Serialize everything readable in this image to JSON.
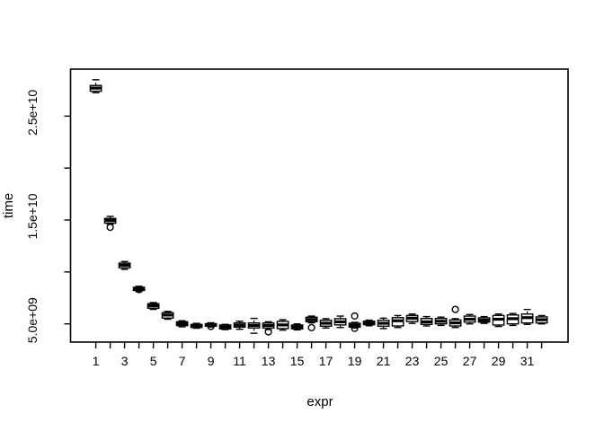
{
  "figure": {
    "background": "#ffffff",
    "foreground": "#000000"
  },
  "chart_data": {
    "type": "boxplot",
    "title": "",
    "xlabel": "expr",
    "ylabel": "time",
    "legend": "none",
    "grid": false,
    "x_ticks": [
      1,
      2,
      3,
      4,
      5,
      6,
      7,
      8,
      9,
      10,
      11,
      12,
      13,
      14,
      15,
      16,
      17,
      18,
      19,
      20,
      21,
      22,
      23,
      24,
      25,
      26,
      27,
      28,
      29,
      30,
      31,
      32
    ],
    "x_tick_labels": [
      "1",
      "",
      "3",
      "",
      "5",
      "",
      "7",
      "",
      "9",
      "",
      "11",
      "",
      "13",
      "",
      "15",
      "",
      "17",
      "",
      "19",
      "",
      "21",
      "",
      "23",
      "",
      "25",
      "",
      "27",
      "",
      "29",
      "",
      "31",
      ""
    ],
    "y_ticks": [
      5000000000.0,
      10000000000.0,
      15000000000.0,
      20000000000.0,
      25000000000.0
    ],
    "y_tick_labels": [
      {
        "value": 5000000000.0,
        "label": "5.0e+09"
      },
      {
        "value": 15000000000.0,
        "label": "1.5e+10"
      },
      {
        "value": 25000000000.0,
        "label": "2.5e+10"
      }
    ],
    "ylim": [
      3250000000.0,
      29500000000.0
    ],
    "xlim": [
      0.5,
      32.5
    ],
    "boxes": [
      {
        "x": 1,
        "lo": 27250000000.0,
        "q1": 27400000000.0,
        "med": 27700000000.0,
        "q3": 27950000000.0,
        "hi": 28500000000.0,
        "out": []
      },
      {
        "x": 2,
        "lo": 14600000000.0,
        "q1": 14700000000.0,
        "med": 14950000000.0,
        "q3": 15150000000.0,
        "hi": 15350000000.0,
        "out": [
          14300000000.0
        ]
      },
      {
        "x": 3,
        "lo": 10250000000.0,
        "q1": 10400000000.0,
        "med": 10650000000.0,
        "q3": 10850000000.0,
        "hi": 11000000000.0,
        "out": []
      },
      {
        "x": 4,
        "lo": 8100000000.0,
        "q1": 8220000000.0,
        "med": 8370000000.0,
        "q3": 8520000000.0,
        "hi": 8620000000.0,
        "out": [
          8300000000.0
        ]
      },
      {
        "x": 5,
        "lo": 6400000000.0,
        "q1": 6510000000.0,
        "med": 6750000000.0,
        "q3": 6940000000.0,
        "hi": 7050000000.0,
        "out": []
      },
      {
        "x": 6,
        "lo": 5450000000.0,
        "q1": 5560000000.0,
        "med": 5850000000.0,
        "q3": 6080000000.0,
        "hi": 6200000000.0,
        "out": []
      },
      {
        "x": 7,
        "lo": 4720000000.0,
        "q1": 4830000000.0,
        "med": 5020000000.0,
        "q3": 5210000000.0,
        "hi": 5300000000.0,
        "out": []
      },
      {
        "x": 8,
        "lo": 4580000000.0,
        "q1": 4660000000.0,
        "med": 4810000000.0,
        "q3": 4950000000.0,
        "hi": 5050000000.0,
        "out": []
      },
      {
        "x": 9,
        "lo": 4700000000.0,
        "q1": 4780000000.0,
        "med": 4900000000.0,
        "q3": 5020000000.0,
        "hi": 5100000000.0,
        "out": [
          4750000000.0
        ]
      },
      {
        "x": 10,
        "lo": 4450000000.0,
        "q1": 4520000000.0,
        "med": 4700000000.0,
        "q3": 4890000000.0,
        "hi": 4950000000.0,
        "out": []
      },
      {
        "x": 11,
        "lo": 4480000000.0,
        "q1": 4680000000.0,
        "med": 4870000000.0,
        "q3": 5090000000.0,
        "hi": 5260000000.0,
        "out": []
      },
      {
        "x": 12,
        "lo": 4100000000.0,
        "q1": 4610000000.0,
        "med": 4850000000.0,
        "q3": 5090000000.0,
        "hi": 5530000000.0,
        "out": []
      },
      {
        "x": 13,
        "lo": 4450000000.0,
        "q1": 4610000000.0,
        "med": 4850000000.0,
        "q3": 5090000000.0,
        "hi": 5200000000.0,
        "out": [
          4230000000.0
        ]
      },
      {
        "x": 14,
        "lo": 4400000000.0,
        "q1": 4550000000.0,
        "med": 4900000000.0,
        "q3": 5240000000.0,
        "hi": 5400000000.0,
        "out": []
      },
      {
        "x": 15,
        "lo": 4420000000.0,
        "q1": 4520000000.0,
        "med": 4720000000.0,
        "q3": 4890000000.0,
        "hi": 5000000000.0,
        "out": []
      },
      {
        "x": 16,
        "lo": 5100000000.0,
        "q1": 5210000000.0,
        "med": 5420000000.0,
        "q3": 5640000000.0,
        "hi": 5750000000.0,
        "out": [
          4640000000.0
        ]
      },
      {
        "x": 17,
        "lo": 4600000000.0,
        "q1": 4780000000.0,
        "med": 5060000000.0,
        "q3": 5350000000.0,
        "hi": 5500000000.0,
        "out": []
      },
      {
        "x": 18,
        "lo": 4650000000.0,
        "q1": 4900000000.0,
        "med": 5200000000.0,
        "q3": 5500000000.0,
        "hi": 5750000000.0,
        "out": []
      },
      {
        "x": 19,
        "lo": 4600000000.0,
        "q1": 4690000000.0,
        "med": 4870000000.0,
        "q3": 5060000000.0,
        "hi": 5150000000.0,
        "out": [
          5760000000.0,
          4570000000.0
        ]
      },
      {
        "x": 20,
        "lo": 4820000000.0,
        "q1": 4920000000.0,
        "med": 5090000000.0,
        "q3": 5260000000.0,
        "hi": 5360000000.0,
        "out": []
      },
      {
        "x": 21,
        "lo": 4550000000.0,
        "q1": 4780000000.0,
        "med": 5060000000.0,
        "q3": 5350000000.0,
        "hi": 5550000000.0,
        "out": []
      },
      {
        "x": 22,
        "lo": 4650000000.0,
        "q1": 4800000000.0,
        "med": 5300000000.0,
        "q3": 5600000000.0,
        "hi": 5800000000.0,
        "out": []
      },
      {
        "x": 23,
        "lo": 5050000000.0,
        "q1": 5230000000.0,
        "med": 5550000000.0,
        "q3": 5810000000.0,
        "hi": 5950000000.0,
        "out": []
      },
      {
        "x": 24,
        "lo": 4800000000.0,
        "q1": 4950000000.0,
        "med": 5200000000.0,
        "q3": 5520000000.0,
        "hi": 5700000000.0,
        "out": []
      },
      {
        "x": 25,
        "lo": 4850000000.0,
        "q1": 5000000000.0,
        "med": 5250000000.0,
        "q3": 5520000000.0,
        "hi": 5650000000.0,
        "out": []
      },
      {
        "x": 26,
        "lo": 4650000000.0,
        "q1": 4800000000.0,
        "med": 5100000000.0,
        "q3": 5380000000.0,
        "hi": 5500000000.0,
        "out": [
          6390000000.0
        ]
      },
      {
        "x": 27,
        "lo": 5000000000.0,
        "q1": 5170000000.0,
        "med": 5450000000.0,
        "q3": 5750000000.0,
        "hi": 5900000000.0,
        "out": []
      },
      {
        "x": 28,
        "lo": 5050000000.0,
        "q1": 5170000000.0,
        "med": 5350000000.0,
        "q3": 5580000000.0,
        "hi": 5700000000.0,
        "out": []
      },
      {
        "x": 29,
        "lo": 4750000000.0,
        "q1": 4890000000.0,
        "med": 5450000000.0,
        "q3": 5810000000.0,
        "hi": 5950000000.0,
        "out": []
      },
      {
        "x": 30,
        "lo": 4850000000.0,
        "q1": 5000000000.0,
        "med": 5500000000.0,
        "q3": 5860000000.0,
        "hi": 6000000000.0,
        "out": []
      },
      {
        "x": 31,
        "lo": 4950000000.0,
        "q1": 5090000000.0,
        "med": 5600000000.0,
        "q3": 5950000000.0,
        "hi": 6390000000.0,
        "out": []
      },
      {
        "x": 32,
        "lo": 5000000000.0,
        "q1": 5090000000.0,
        "med": 5400000000.0,
        "q3": 5670000000.0,
        "hi": 5800000000.0,
        "out": []
      }
    ]
  }
}
